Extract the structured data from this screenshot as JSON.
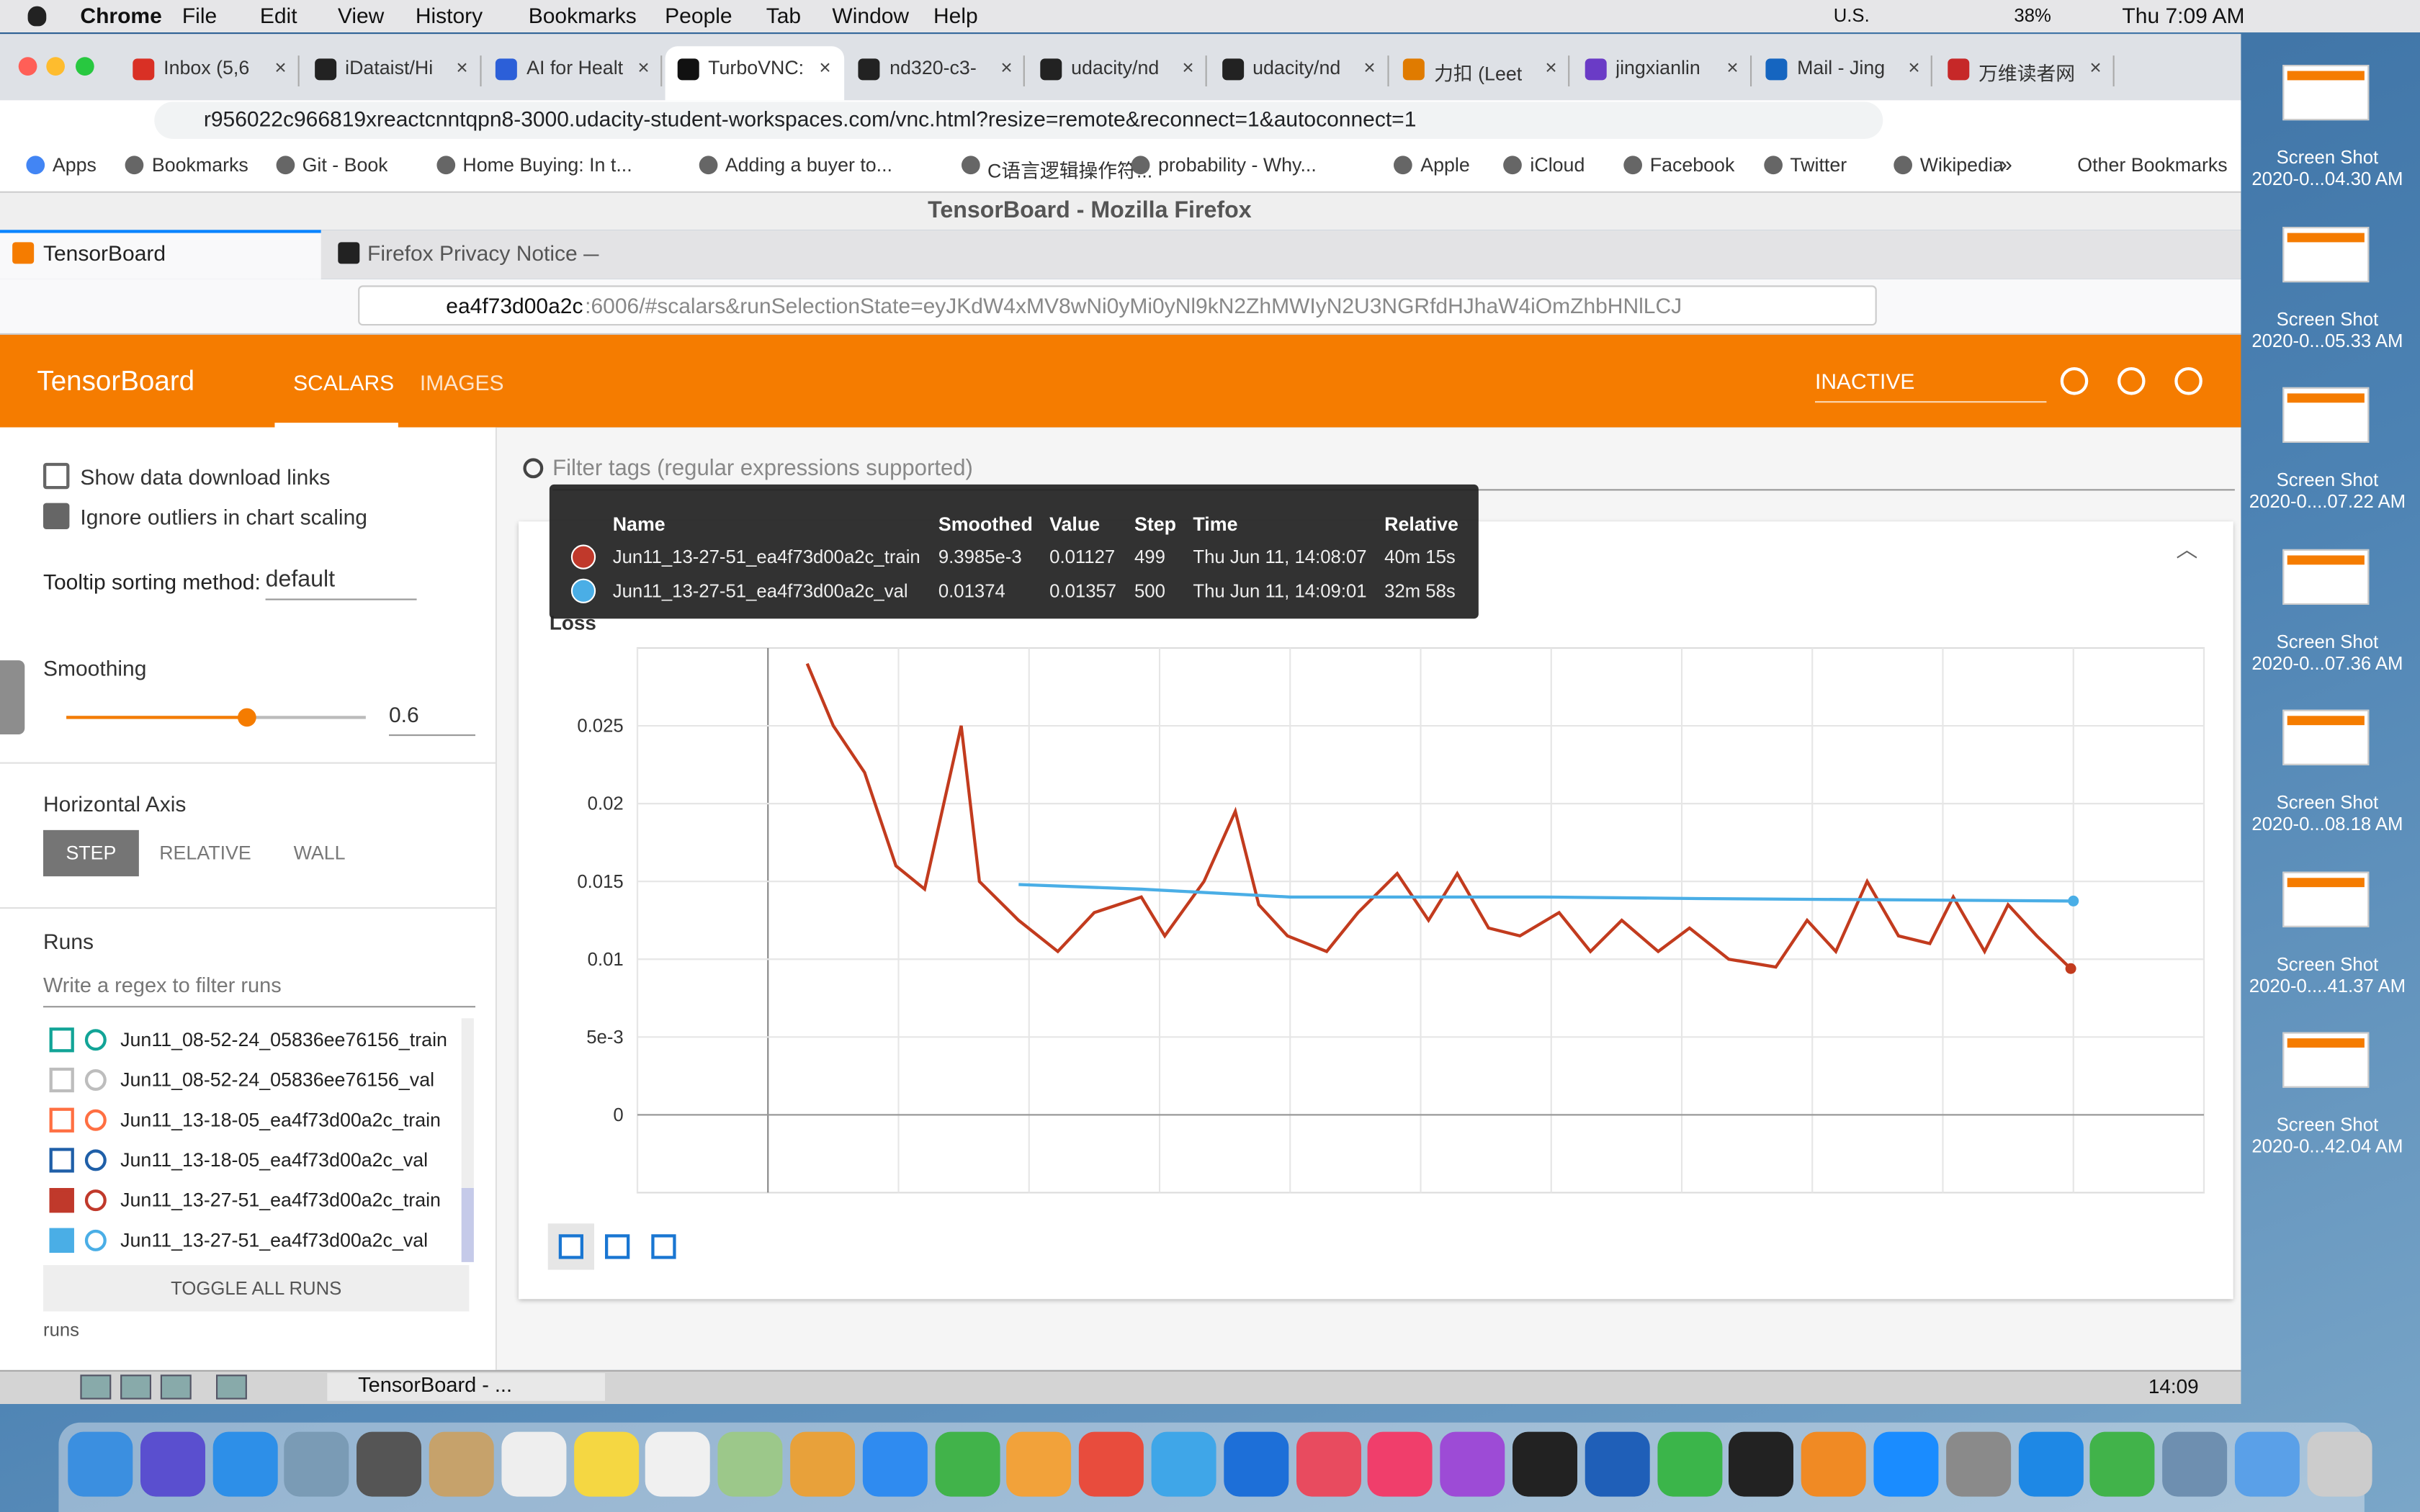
{
  "menu_bar": {
    "app": "Chrome",
    "items": [
      "File",
      "Edit",
      "View",
      "History",
      "Bookmarks",
      "People",
      "Tab",
      "Window",
      "Help"
    ],
    "keyboard": "U.S.",
    "battery": "38%",
    "clock": "Thu 7:09 AM"
  },
  "chrome": {
    "tabs": [
      "Inbox (5,6",
      "iDataist/Hi",
      "AI for Healt",
      "TurboVNC:",
      "nd320-c3-",
      "udacity/nd",
      "udacity/nd",
      "力扣 (Leet",
      "jingxianlin",
      "Mail - Jing",
      "万维读者网"
    ],
    "url": "r956022c966819xreactcnntqpn8-3000.udacity-student-workspaces.com/vnc.html?resize=remote&reconnect=1&autoconnect=1",
    "bookmarks": [
      "Apps",
      "Bookmarks",
      "Git - Book",
      "Home Buying: In t...",
      "Adding a buyer to...",
      "C语言逻辑操作符...",
      "probability - Why...",
      "Apple",
      "iCloud",
      "Facebook",
      "Twitter",
      "Wikipedia"
    ],
    "more": "»",
    "other_bookmarks": "Other Bookmarks"
  },
  "firefox": {
    "title": "TensorBoard - Mozilla Firefox",
    "tabs": [
      "TensorBoard",
      "Firefox Privacy Notice —"
    ],
    "url_host": "ea4f73d00a2c",
    "url_rest": ":6006/#scalars&runSelectionState=eyJKdW4xMV8wNi0yMi0yNl9kN2ZhMWIyN2U3NGRfdHJhaW4iOmZhbHNlLCJ"
  },
  "tensorboard": {
    "brand": "TensorBoard",
    "nav": [
      "SCALARS",
      "IMAGES"
    ],
    "status": "INACTIVE",
    "options": [
      "Show data download links",
      "Ignore outliers in chart scaling"
    ],
    "tooltip_sort_label": "Tooltip sorting method:",
    "tooltip_sort_value": "default",
    "smoothing_label": "Smoothing",
    "smoothing_value": 0.6,
    "axis_label": "Horizontal Axis",
    "axis_buttons": [
      "STEP",
      "RELATIVE",
      "WALL"
    ],
    "runs_label": "Runs",
    "runs_filter": "Write a regex to filter runs",
    "runs": [
      {
        "name": "Jun11_08-52-24_05836ee76156_train",
        "color": "#12a497",
        "checked": false
      },
      {
        "name": "Jun11_08-52-24_05836ee76156_val",
        "color": "#bdbdbd",
        "checked": false
      },
      {
        "name": "Jun11_13-18-05_ea4f73d00a2c_train",
        "color": "#ff6f42",
        "checked": false
      },
      {
        "name": "Jun11_13-18-05_ea4f73d00a2c_val",
        "color": "#1f5fa8",
        "checked": false
      },
      {
        "name": "Jun11_13-27-51_ea4f73d00a2c_train",
        "color": "#c0392b",
        "checked": true
      },
      {
        "name": "Jun11_13-27-51_ea4f73d00a2c_val",
        "color": "#4aaee6",
        "checked": true
      }
    ],
    "toggle": "TOGGLE ALL RUNS",
    "footer": "runs",
    "filter_tags": "Filter tags (regular expressions supported)"
  },
  "tooltip": {
    "headers": [
      "Name",
      "Smoothed",
      "Value",
      "Step",
      "Time",
      "Relative"
    ],
    "rows": [
      {
        "color": "#c0392b",
        "cells": [
          "Jun11_13-27-51_ea4f73d00a2c_train",
          "9.3985e-3",
          "0.01127",
          "499",
          "Thu Jun 11, 14:08:07",
          "40m 15s"
        ]
      },
      {
        "color": "#4aaee6",
        "cells": [
          "Jun11_13-27-51_ea4f73d00a2c_val",
          "0.01374",
          "0.01357",
          "500",
          "Thu Jun 11, 14:09:01",
          "32m 58s"
        ]
      }
    ]
  },
  "chart_data": {
    "type": "line",
    "title": "Loss",
    "xlim": [
      -50,
      550
    ],
    "xticks": [
      -50,
      0,
      50,
      100,
      150,
      200,
      250,
      300,
      350,
      400,
      450,
      500,
      550
    ],
    "ylim": [
      -0.005,
      0.03
    ],
    "yticks": [
      0,
      {
        "value": 0.005,
        "label": "5e-3"
      },
      0.01,
      0.015,
      0.02,
      0.025
    ],
    "grid": true,
    "series": [
      {
        "color": "#c23b1e",
        "x": [
          15,
          25,
          37,
          49,
          60,
          74,
          81,
          96,
          111,
          125,
          143,
          152,
          167,
          179,
          188,
          199,
          214,
          226,
          241,
          253,
          264,
          276,
          288,
          303,
          315,
          327,
          341,
          353,
          368,
          386,
          398,
          409,
          421,
          433,
          445,
          454,
          466,
          475,
          486,
          499
        ],
        "values": [
          0.029,
          0.025,
          0.022,
          0.016,
          0.0145,
          0.025,
          0.015,
          0.0125,
          0.0105,
          0.013,
          0.014,
          0.0115,
          0.015,
          0.0195,
          0.0135,
          0.0115,
          0.0105,
          0.013,
          0.0155,
          0.0125,
          0.0155,
          0.012,
          0.0115,
          0.013,
          0.0105,
          0.0125,
          0.0105,
          0.012,
          0.01,
          0.0095,
          0.0125,
          0.0105,
          0.015,
          0.0115,
          0.011,
          0.014,
          0.0105,
          0.0135,
          0.0115,
          0.0093985
        ]
      },
      {
        "color": "#4aaee6",
        "x": [
          96,
          143,
          200,
          297,
          356,
          500
        ],
        "values": [
          0.0148,
          0.0145,
          0.014,
          0.014,
          0.0139,
          0.01374
        ]
      }
    ]
  },
  "desktop": {
    "screenshots": [
      [
        "Screen Shot",
        "2020-0...04.30 AM"
      ],
      [
        "Screen Shot",
        "2020-0...05.33 AM"
      ],
      [
        "Screen Shot",
        "2020-0....07.22 AM"
      ],
      [
        "Screen Shot",
        "2020-0...07.36 AM"
      ],
      [
        "Screen Shot",
        "2020-0...08.18 AM"
      ],
      [
        "Screen Shot",
        "2020-0....41.37 AM"
      ],
      [
        "Screen Shot",
        "2020-0...42.04 AM"
      ]
    ]
  },
  "taskbar": {
    "task": "TensorBoard - ...",
    "clock": "14:09"
  }
}
